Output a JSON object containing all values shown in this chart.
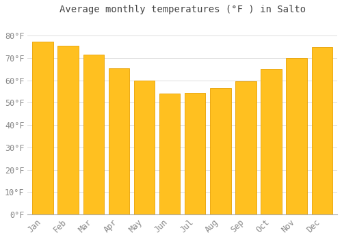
{
  "title": "Average monthly temperatures (°F ) in Salto",
  "months": [
    "Jan",
    "Feb",
    "Mar",
    "Apr",
    "May",
    "Jun",
    "Jul",
    "Aug",
    "Sep",
    "Oct",
    "Nov",
    "Dec"
  ],
  "values": [
    77.5,
    75.5,
    71.5,
    65.5,
    60.0,
    54.0,
    54.5,
    56.5,
    59.5,
    65.0,
    70.0,
    75.0
  ],
  "bar_color": "#FFC020",
  "bar_edge_color": "#E8A000",
  "background_color": "#FFFFFF",
  "grid_color": "#DDDDDD",
  "text_color": "#888888",
  "title_color": "#444444",
  "ylim": [
    0,
    88
  ],
  "yticks": [
    0,
    10,
    20,
    30,
    40,
    50,
    60,
    70,
    80
  ],
  "ytick_labels": [
    "0°F",
    "10°F",
    "20°F",
    "30°F",
    "40°F",
    "50°F",
    "60°F",
    "70°F",
    "80°F"
  ],
  "title_fontsize": 10,
  "tick_fontsize": 8.5,
  "bar_width": 0.82
}
